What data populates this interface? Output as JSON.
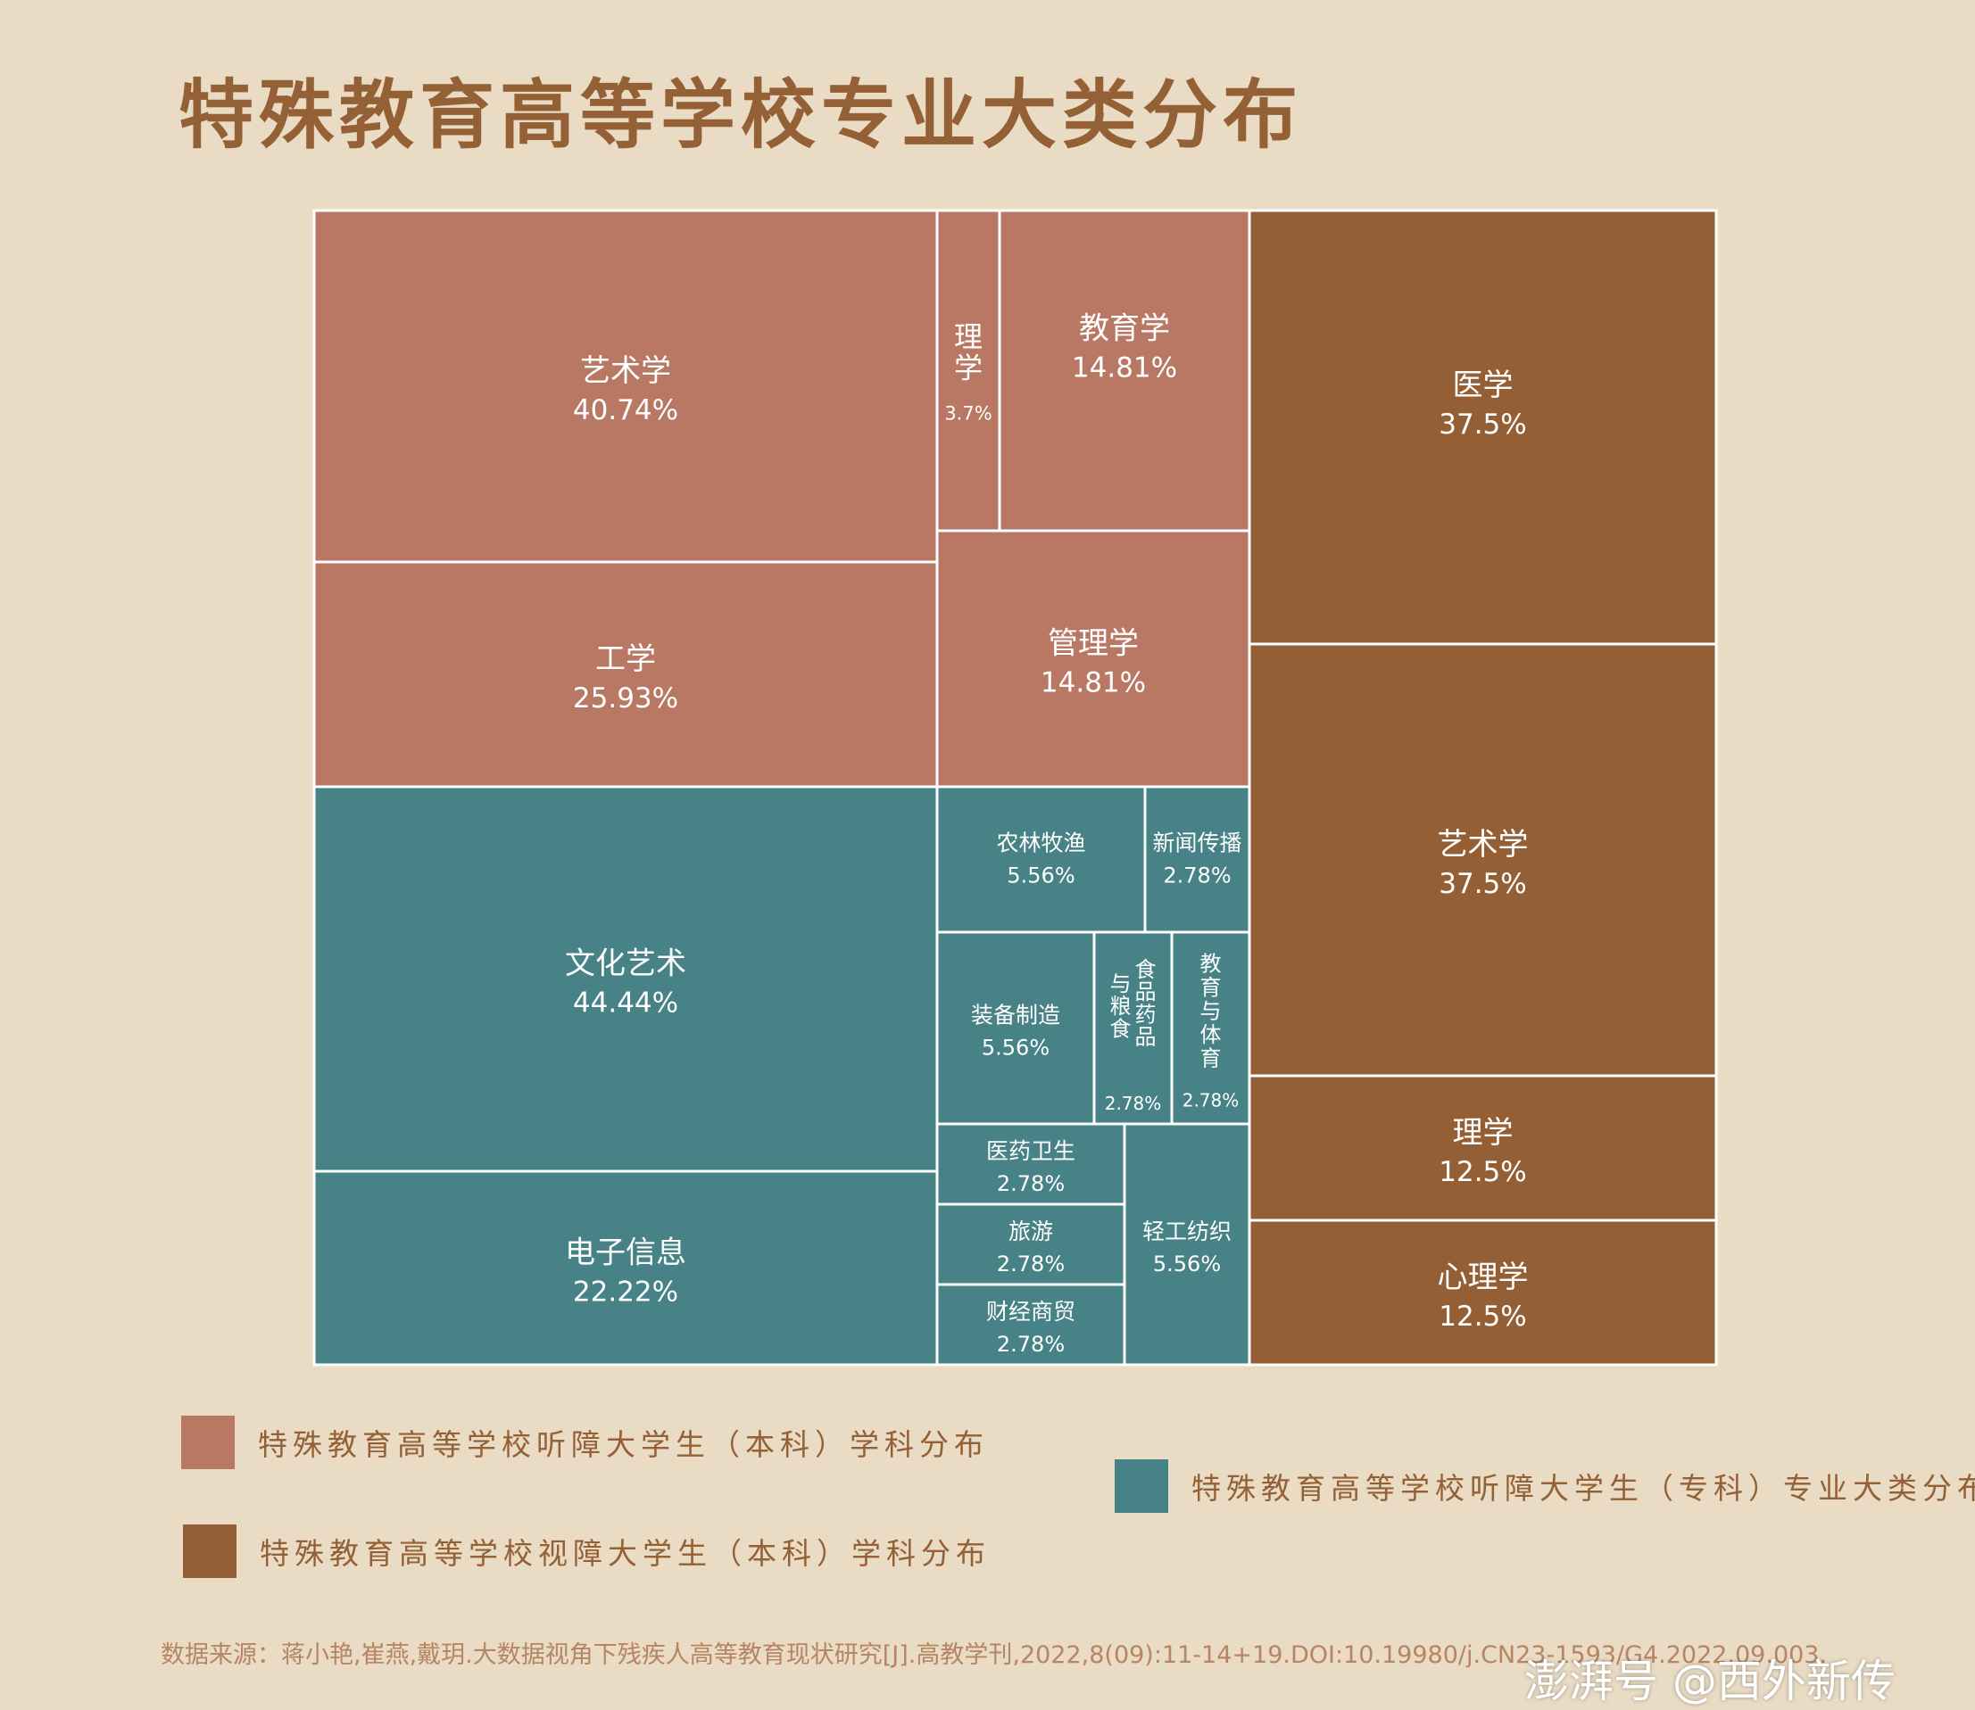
{
  "title": "特殊教育高等学校专业大类分布",
  "colors": {
    "background": "#e9dbc4",
    "hearing_bachelor": "#b87864",
    "hearing_associate": "#468286",
    "visual_bachelor": "#945f34",
    "title_text": "#946036",
    "cell_text": "#ffffff"
  },
  "legend": [
    {
      "label": "特殊教育高等学校听障大学生（本科）学科分布",
      "color": "#b87864"
    },
    {
      "label": "特殊教育高等学校视障大学生（本科）学科分布",
      "color": "#945f34"
    },
    {
      "label": "特殊教育高等学校听障大学生（专科）专业大类分布",
      "color": "#468286"
    }
  ],
  "chart_data": {
    "type": "treemap",
    "unit": "%",
    "groups": [
      {
        "legend_index": 0,
        "items": [
          {
            "name": "艺术学",
            "value": 40.74,
            "label": "40.74%"
          },
          {
            "name": "工学",
            "value": 25.93,
            "label": "25.93%"
          },
          {
            "name": "理学",
            "value": 3.7,
            "label": "3.7%"
          },
          {
            "name": "教育学",
            "value": 14.81,
            "label": "14.81%"
          },
          {
            "name": "管理学",
            "value": 14.81,
            "label": "14.81%"
          }
        ]
      },
      {
        "legend_index": 2,
        "items": [
          {
            "name": "文化艺术",
            "value": 44.44,
            "label": "44.44%"
          },
          {
            "name": "电子信息",
            "value": 22.22,
            "label": "22.22%"
          },
          {
            "name": "农林牧渔",
            "value": 5.56,
            "label": "5.56%"
          },
          {
            "name": "新闻传播",
            "value": 2.78,
            "label": "2.78%"
          },
          {
            "name": "装备制造",
            "value": 5.56,
            "label": "5.56%"
          },
          {
            "name": "食品药品与粮食",
            "value": 2.78,
            "label": "2.78%"
          },
          {
            "name": "教育与体育",
            "value": 2.78,
            "label": "2.78%"
          },
          {
            "name": "医药卫生",
            "value": 2.78,
            "label": "2.78%"
          },
          {
            "name": "旅游",
            "value": 2.78,
            "label": "2.78%"
          },
          {
            "name": "财经商贸",
            "value": 2.78,
            "label": "2.78%"
          },
          {
            "name": "轻工纺织",
            "value": 5.56,
            "label": "5.56%"
          }
        ]
      },
      {
        "legend_index": 1,
        "items": [
          {
            "name": "医学",
            "value": 37.5,
            "label": "37.5%"
          },
          {
            "name": "艺术学",
            "value": 37.5,
            "label": "37.5%"
          },
          {
            "name": "理学",
            "value": 12.5,
            "label": "12.5%"
          },
          {
            "name": "心理学",
            "value": 12.5,
            "label": "12.5%"
          }
        ]
      }
    ]
  },
  "source": "数据来源：蒋小艳,崔燕,戴玥.大数据视角下残疾人高等教育现状研究[J].高教学刊,2022,8(09):11-14+19.DOI:10.19980/j.CN23-1593/G4.2022.09.003.",
  "watermark": "澎湃号 @西外新传"
}
